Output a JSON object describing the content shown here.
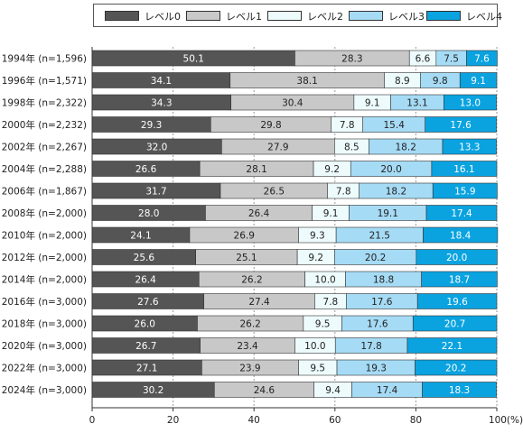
{
  "chart_data": {
    "type": "bar",
    "orientation": "horizontal",
    "stacked": true,
    "categories": [
      "1994年 (n=1,596)",
      "1996年 (n=1,571)",
      "1998年 (n=2,322)",
      "2000年 (n=2,232)",
      "2002年 (n=2,267)",
      "2004年 (n=2,288)",
      "2006年 (n=1,867)",
      "2008年 (n=2,000)",
      "2010年 (n=2,000)",
      "2012年 (n=2,000)",
      "2014年 (n=2,000)",
      "2016年 (n=3,000)",
      "2018年 (n=3,000)",
      "2020年 (n=3,000)",
      "2022年 (n=3,000)",
      "2024年 (n=3,000)"
    ],
    "series": [
      {
        "name": "レベル0",
        "color": "#555555",
        "label_color": "#ffffff",
        "values": [
          50.1,
          34.1,
          34.3,
          29.3,
          32.0,
          26.6,
          31.7,
          28.0,
          24.1,
          25.6,
          26.4,
          27.6,
          26.0,
          26.7,
          27.1,
          30.2
        ],
        "labels": [
          "50.1",
          "34.1",
          "34.3",
          "29.3",
          "32.0",
          "26.6",
          "31.7",
          "28.0",
          "24.1",
          "25.6",
          "26.4",
          "27.6",
          "26.0",
          "26.7",
          "27.1",
          "30.2"
        ]
      },
      {
        "name": "レベル1",
        "color": "#c8c8c8",
        "label_color": "#222222",
        "values": [
          28.3,
          38.1,
          30.4,
          29.8,
          27.9,
          28.1,
          26.5,
          26.4,
          26.9,
          25.1,
          26.2,
          27.4,
          26.2,
          23.4,
          23.9,
          24.6
        ],
        "labels": [
          "28.3",
          "38.1",
          "30.4",
          "29.8",
          "27.9",
          "28.1",
          "26.5",
          "26.4",
          "26.9",
          "25.1",
          "26.2",
          "27.4",
          "26.2",
          "23.4",
          "23.9",
          "24.6"
        ]
      },
      {
        "name": "レベル2",
        "color": "#edfbfd",
        "label_color": "#222222",
        "values": [
          6.6,
          8.9,
          9.1,
          7.8,
          8.5,
          9.2,
          7.8,
          9.1,
          9.3,
          9.2,
          10.0,
          7.8,
          9.5,
          10.0,
          9.5,
          9.4
        ],
        "labels": [
          "6.6",
          "8.9",
          "9.1",
          "7.8",
          "8.5",
          "9.2",
          "7.8",
          "9.1",
          "9.3",
          "9.2",
          "10.0",
          "7.8",
          "9.5",
          "10.0",
          "9.5",
          "9.4"
        ]
      },
      {
        "name": "レベル3",
        "color": "#a6dbf5",
        "label_color": "#222222",
        "values": [
          7.5,
          9.8,
          13.1,
          15.4,
          18.2,
          20.0,
          18.2,
          19.1,
          21.5,
          20.2,
          18.8,
          17.6,
          17.6,
          17.8,
          19.3,
          17.4
        ],
        "labels": [
          "7.5",
          "9.8",
          "13.1",
          "15.4",
          "18.2",
          "20.0",
          "18.2",
          "19.1",
          "21.5",
          "20.2",
          "18.8",
          "17.6",
          "17.6",
          "17.8",
          "19.3",
          "17.4"
        ]
      },
      {
        "name": "レベル4",
        "color": "#0aa3e0",
        "label_color": "#ffffff",
        "values": [
          7.6,
          9.1,
          13.0,
          17.6,
          13.3,
          16.1,
          15.9,
          17.4,
          18.4,
          20.0,
          18.7,
          19.6,
          20.7,
          22.1,
          20.2,
          18.3
        ],
        "labels": [
          "7.6",
          "9.1",
          "13.0",
          "17.6",
          "13.3",
          "16.1",
          "15.9",
          "17.4",
          "18.4",
          "20.0",
          "18.7",
          "19.6",
          "20.7",
          "22.1",
          "20.2",
          "18.3"
        ]
      }
    ],
    "xlim": [
      0,
      100
    ],
    "x_ticks": [
      "0",
      "20",
      "40",
      "60",
      "80",
      "100(%)"
    ],
    "x_tick_values": [
      0,
      20,
      40,
      60,
      80,
      100
    ],
    "grid": true,
    "legend_position": "top"
  }
}
